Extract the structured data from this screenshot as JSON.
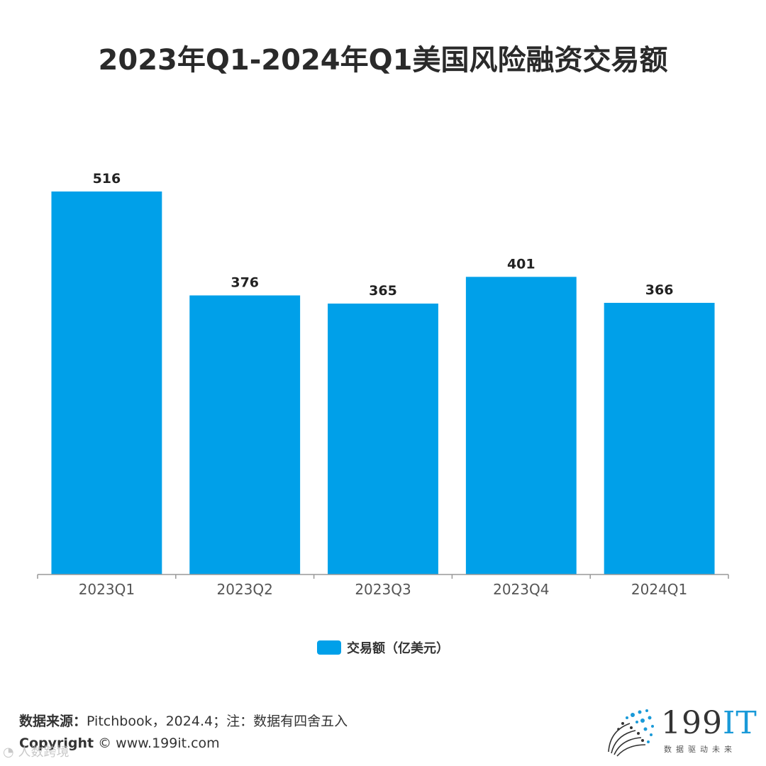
{
  "title": "2023年Q1-2024年Q1美国风险融资交易额",
  "chart_data": {
    "type": "bar",
    "categories": [
      "2023Q1",
      "2023Q2",
      "2023Q3",
      "2023Q4",
      "2024Q1"
    ],
    "series": [
      {
        "name": "交易额（亿美元）",
        "values": [
          516,
          376,
          365,
          401,
          366
        ]
      }
    ],
    "data_labels": [
      "516",
      "376",
      "365",
      "401",
      "366"
    ],
    "ylim": [
      0,
      620
    ],
    "grid": false,
    "legend_position": "bottom",
    "bar_color": "#00a0e9"
  },
  "legend": {
    "label": "交易额（亿美元）",
    "color": "#00a0e9"
  },
  "source": {
    "label": "数据来源：",
    "text": "Pitchbook，2024.4；注：数据有四舍五入"
  },
  "copyright": {
    "label": "Copyright",
    "text": "© www.199it.com"
  },
  "logo": {
    "main": "199",
    "accent": "IT",
    "tagline": "数据驱动未来",
    "icon": "dandelion-dots-icon"
  },
  "watermark": {
    "text": "人数跨境",
    "icon": "wechat-icon"
  }
}
